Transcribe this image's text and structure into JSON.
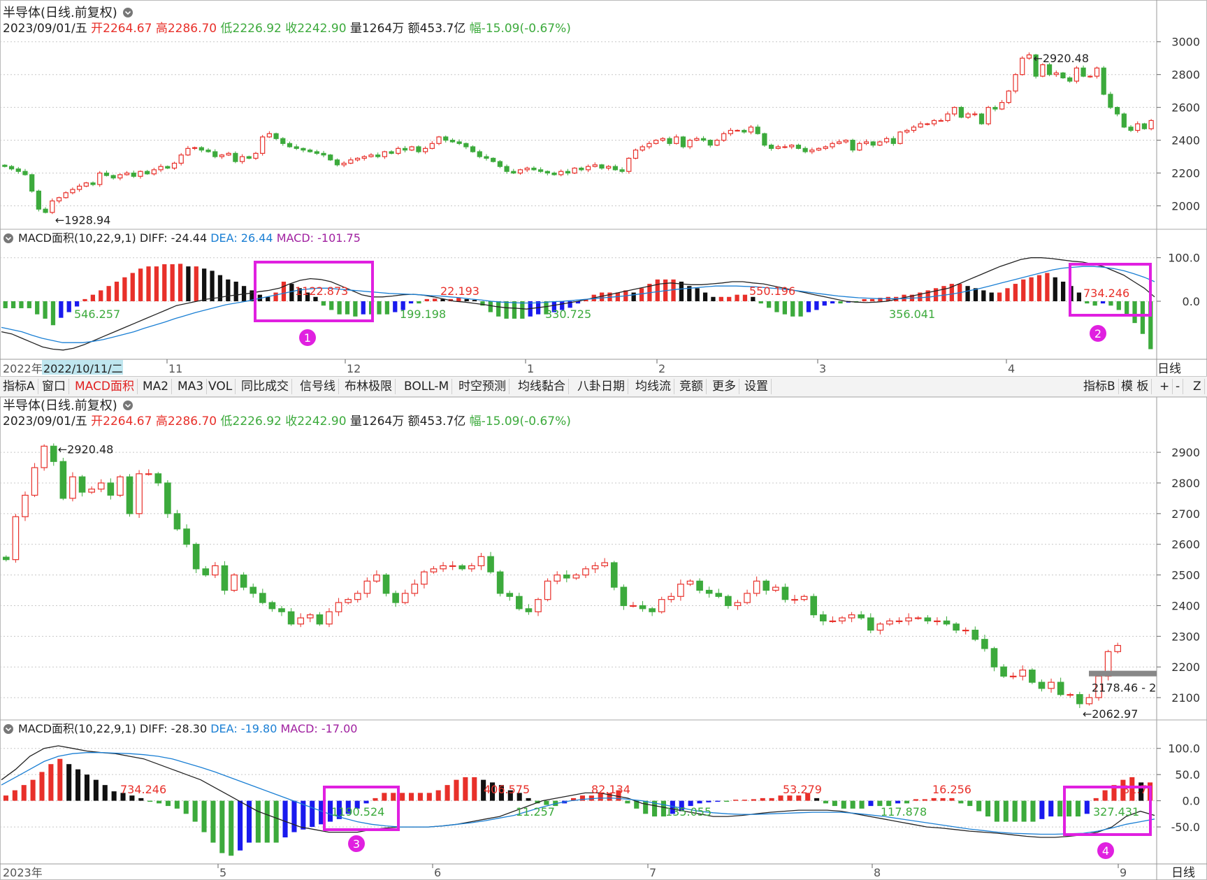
{
  "colors": {
    "up": "#e8302a",
    "down": "#3caa3c",
    "blue": "#1a1aee",
    "black": "#111111",
    "dea": "#1a7fd4",
    "diff": "#222222",
    "grid": "#c8c8c8",
    "box": "#e020e0",
    "macd_label": "#a020a0"
  },
  "top_panel": {
    "title": "半导体(日线.前复权)",
    "info": {
      "date": "2023/09/01/五",
      "open": "开2264.67",
      "high": "高2286.70",
      "low": "低2226.92",
      "close": "收2242.90",
      "vol": "量1264万",
      "amt": "额453.7亿",
      "chg": "幅-15.09(-0.67%)"
    }
  },
  "top_macd": {
    "header": "MACD面积(10,22,9,1)",
    "diff": "DIFF: -24.44",
    "dea": "DEA: 26.44",
    "macd": "MACD: -101.75"
  },
  "time_axis_top": {
    "labels": [
      "2022年",
      "2022/10/11/二",
      "11",
      "12",
      "1",
      "2",
      "3",
      "4"
    ],
    "right": "日线"
  },
  "toolbar": {
    "left": [
      "指标A",
      "窗口",
      "MACD面积",
      "MA2",
      "MA3",
      "VOL",
      "同比成交",
      "信号线",
      "布林极限",
      "BOLL-M",
      "时空预测",
      "均线黏合",
      "八卦日期",
      "均线流",
      "竞额",
      "更多",
      "设置"
    ],
    "right": [
      "指标B",
      "模 板",
      "+",
      "-",
      "Z"
    ]
  },
  "bottom_panel": {
    "title": "半导体(日线.前复权)",
    "info": {
      "date": "2023/09/01/五",
      "open": "开2264.67",
      "high": "高2286.70",
      "low": "低2226.92",
      "close": "收2242.90",
      "vol": "量1264万",
      "amt": "额453.7亿",
      "chg": "幅-15.09(-0.67%)"
    },
    "price_tag": "2178.46 - 2"
  },
  "bottom_macd": {
    "header": "MACD面积(10,22,9,1)",
    "diff": "DIFF: -28.30",
    "dea": "DEA: -19.80",
    "macd": "MACD: -17.00"
  },
  "time_axis_bottom": {
    "labels": [
      "2023年",
      "5",
      "6",
      "7",
      "8",
      "9"
    ],
    "right": "日线"
  },
  "chart_data": [
    {
      "type": "candlestick",
      "name": "top_price",
      "ylim": [
        1900,
        3050
      ],
      "yticks": [
        2000,
        2200,
        2400,
        2600,
        2800,
        3000
      ],
      "closes": [
        2240,
        2225,
        2210,
        2190,
        2090,
        1980,
        1960,
        2030,
        2050,
        2080,
        2100,
        2120,
        2140,
        2130,
        2200,
        2185,
        2170,
        2190,
        2200,
        2180,
        2210,
        2195,
        2220,
        2240,
        2230,
        2260,
        2310,
        2350,
        2355,
        2340,
        2330,
        2300,
        2310,
        2320,
        2270,
        2300,
        2290,
        2320,
        2420,
        2440,
        2410,
        2380,
        2360,
        2350,
        2340,
        2330,
        2320,
        2310,
        2280,
        2250,
        2260,
        2280,
        2290,
        2300,
        2310,
        2300,
        2330,
        2320,
        2350,
        2340,
        2360,
        2330,
        2350,
        2380,
        2420,
        2400,
        2390,
        2380,
        2360,
        2330,
        2300,
        2290,
        2270,
        2240,
        2210,
        2200,
        2220,
        2230,
        2220,
        2210,
        2200,
        2190,
        2210,
        2200,
        2230,
        2220,
        2240,
        2250,
        2230,
        2240,
        2220,
        2210,
        2290,
        2340,
        2360,
        2380,
        2400,
        2410,
        2380,
        2420,
        2360,
        2400,
        2410,
        2400,
        2370,
        2400,
        2440,
        2460,
        2460,
        2450,
        2480,
        2440,
        2370,
        2350,
        2360,
        2360,
        2370,
        2350,
        2330,
        2340,
        2350,
        2360,
        2380,
        2390,
        2400,
        2340,
        2380,
        2390,
        2370,
        2390,
        2410,
        2380,
        2450,
        2460,
        2480,
        2500,
        2500,
        2520,
        2520,
        2560,
        2600,
        2540,
        2560,
        2560,
        2500,
        2600,
        2590,
        2630,
        2700,
        2800,
        2900,
        2920,
        2790,
        2860,
        2800,
        2810,
        2780,
        2760,
        2840,
        2790,
        2790,
        2840,
        2680,
        2600,
        2560,
        2480,
        2460,
        2500,
        2470,
        2520
      ],
      "price_label_high": "2920.48",
      "price_label_low": "1928.94"
    },
    {
      "type": "candlestick",
      "name": "bottom_price",
      "ylim": [
        2050,
        2980
      ],
      "yticks": [
        2100,
        2200,
        2300,
        2400,
        2500,
        2600,
        2700,
        2800,
        2900
      ],
      "closes": [
        2550,
        2690,
        2760,
        2850,
        2920,
        2870,
        2750,
        2820,
        2770,
        2780,
        2800,
        2760,
        2820,
        2700,
        2830,
        2830,
        2800,
        2700,
        2650,
        2600,
        2520,
        2500,
        2530,
        2450,
        2500,
        2460,
        2440,
        2410,
        2390,
        2380,
        2340,
        2360,
        2370,
        2340,
        2380,
        2410,
        2420,
        2440,
        2480,
        2500,
        2440,
        2410,
        2440,
        2470,
        2510,
        2520,
        2530,
        2530,
        2520,
        2530,
        2560,
        2510,
        2440,
        2430,
        2390,
        2380,
        2420,
        2480,
        2500,
        2490,
        2500,
        2520,
        2530,
        2540,
        2460,
        2400,
        2400,
        2390,
        2380,
        2420,
        2430,
        2470,
        2480,
        2450,
        2440,
        2430,
        2400,
        2410,
        2440,
        2480,
        2450,
        2460,
        2420,
        2420,
        2430,
        2370,
        2350,
        2350,
        2360,
        2370,
        2360,
        2320,
        2340,
        2350,
        2350,
        2360,
        2360,
        2350,
        2350,
        2340,
        2320,
        2320,
        2290,
        2260,
        2200,
        2170,
        2170,
        2190,
        2150,
        2130,
        2150,
        2110,
        2110,
        2080,
        2100,
        2170,
        2250,
        2270
      ],
      "price_label_high": "2920.48",
      "price_label_low": "2062.97"
    },
    {
      "type": "bar",
      "name": "top_macd",
      "ylim": [
        -130,
        130
      ],
      "yticks": [
        100.0,
        0.0
      ],
      "hist": [
        -16,
        -16,
        -16,
        -16,
        -30,
        -40,
        -55,
        -38,
        -25,
        -12,
        5,
        15,
        25,
        35,
        45,
        55,
        65,
        75,
        80,
        80,
        85,
        85,
        86,
        80,
        80,
        75,
        70,
        60,
        50,
        45,
        35,
        25,
        15,
        10,
        20,
        45,
        40,
        30,
        20,
        10,
        -10,
        -20,
        -30,
        -30,
        -35,
        -30,
        -30,
        -30,
        -30,
        -25,
        -20,
        -5,
        -5,
        5,
        6,
        5,
        5,
        8,
        5,
        3,
        -10,
        -25,
        -35,
        -40,
        -40,
        -40,
        -35,
        -30,
        -30,
        -25,
        -20,
        -15,
        -5,
        5,
        15,
        20,
        20,
        20,
        25,
        20,
        30,
        40,
        50,
        50,
        50,
        45,
        35,
        30,
        20,
        10,
        10,
        10,
        15,
        15,
        10,
        -5,
        -15,
        -25,
        -30,
        -35,
        -35,
        -25,
        -20,
        -10,
        -5,
        -5,
        -3,
        -3,
        5,
        5,
        8,
        10,
        10,
        15,
        15,
        20,
        25,
        30,
        35,
        40,
        40,
        35,
        30,
        25,
        20,
        20,
        30,
        40,
        50,
        55,
        60,
        65,
        55,
        45,
        35,
        20,
        -5,
        -10,
        -5,
        -10,
        -20,
        -30,
        -50,
        -75,
        -110
      ],
      "diff": [
        -70,
        -75,
        -85,
        -95,
        -105,
        -110,
        -112,
        -108,
        -100,
        -90,
        -80,
        -70,
        -60,
        -50,
        -40,
        -30,
        -20,
        -10,
        -5,
        0,
        5,
        8,
        12,
        15,
        18,
        22,
        25,
        30,
        40,
        48,
        52,
        50,
        45,
        35,
        25,
        15,
        10,
        10,
        12,
        15,
        16,
        14,
        10,
        5,
        0,
        -2,
        -5,
        -8,
        -12,
        -15,
        -16,
        -18,
        -15,
        -12,
        -8,
        -4,
        0,
        5,
        10,
        15,
        20,
        25,
        30,
        35,
        40,
        42,
        40,
        38,
        38,
        40,
        42,
        45,
        45,
        42,
        40,
        35,
        30,
        25,
        20,
        15,
        10,
        5,
        0,
        -2,
        -3,
        -2,
        0,
        5,
        10,
        15,
        20,
        25,
        30,
        40,
        50,
        60,
        70,
        80,
        88,
        96,
        100,
        100,
        98,
        95,
        92,
        90,
        85,
        80,
        70,
        60,
        45,
        30,
        10
      ],
      "dea": [
        -60,
        -65,
        -70,
        -78,
        -85,
        -90,
        -95,
        -95,
        -95,
        -92,
        -88,
        -82,
        -76,
        -70,
        -62,
        -55,
        -48,
        -40,
        -33,
        -26,
        -20,
        -14,
        -8,
        -4,
        0,
        5,
        10,
        15,
        20,
        25,
        28,
        30,
        30,
        28,
        26,
        24,
        22,
        20,
        18,
        17,
        16,
        15,
        13,
        12,
        10,
        8,
        5,
        3,
        0,
        -2,
        -3,
        -4,
        -4,
        -3,
        -1,
        0,
        2,
        4,
        6,
        8,
        10,
        12,
        15,
        18,
        21,
        24,
        27,
        29,
        31,
        33,
        35,
        35,
        35,
        34,
        33,
        31,
        29,
        27,
        24,
        21,
        18,
        15,
        12,
        10,
        8,
        7,
        6,
        6,
        6,
        7,
        8,
        10,
        13,
        16,
        20,
        25,
        30,
        36,
        42,
        48,
        54,
        60,
        66,
        72,
        76,
        78,
        80,
        80,
        78,
        75,
        70,
        63,
        55,
        45
      ]
    },
    {
      "type": "bar",
      "name": "bottom_macd",
      "ylim": [
        -110,
        125
      ],
      "yticks": [
        100.0,
        50.0,
        0.0,
        -50.0
      ],
      "hist": [
        10,
        20,
        30,
        40,
        55,
        70,
        80,
        70,
        60,
        50,
        40,
        30,
        18,
        15,
        10,
        5,
        -2,
        -5,
        -10,
        -15,
        -25,
        -40,
        -60,
        -80,
        -100,
        -105,
        -95,
        -80,
        -80,
        -80,
        -80,
        -70,
        -60,
        -55,
        -50,
        -45,
        -40,
        -35,
        -25,
        -15,
        -5,
        5,
        15,
        15,
        15,
        15,
        15,
        15,
        20,
        30,
        40,
        45,
        45,
        40,
        35,
        30,
        20,
        15,
        5,
        -5,
        -8,
        -10,
        -5,
        5,
        10,
        10,
        15,
        15,
        20,
        -5,
        -15,
        -25,
        -30,
        -30,
        -25,
        -20,
        -10,
        -5,
        -3,
        -2,
        -2,
        2,
        2,
        3,
        5,
        5,
        10,
        10,
        10,
        15,
        5,
        -5,
        -10,
        -15,
        -15,
        -15,
        -10,
        -10,
        -10,
        -5,
        -5,
        3,
        3,
        5,
        5,
        5,
        -5,
        -10,
        -20,
        -30,
        -40,
        -40,
        -40,
        -40,
        -40,
        -35,
        -30,
        -30,
        -30,
        -30,
        -25,
        5,
        20,
        30,
        40,
        45,
        35,
        35
      ],
      "diff": [
        40,
        60,
        85,
        100,
        105,
        100,
        95,
        92,
        90,
        85,
        80,
        70,
        60,
        50,
        40,
        25,
        10,
        -5,
        -20,
        -30,
        -40,
        -50,
        -55,
        -60,
        -60,
        -60,
        -55,
        -52,
        -50,
        -50,
        -50,
        -48,
        -45,
        -40,
        -35,
        -30,
        -20,
        -10,
        0,
        5,
        10,
        15,
        15,
        10,
        5,
        -5,
        -10,
        -15,
        -20,
        -25,
        -30,
        -30,
        -28,
        -25,
        -22,
        -20,
        -18,
        -18,
        -18,
        -20,
        -25,
        -30,
        -35,
        -40,
        -45,
        -50,
        -52,
        -55,
        -58,
        -60,
        -62,
        -65,
        -68,
        -70,
        -70,
        -68,
        -65,
        -60,
        -50,
        -30,
        -20,
        -28
      ],
      "dea": [
        30,
        45,
        60,
        75,
        85,
        90,
        92,
        92,
        91,
        90,
        88,
        85,
        80,
        72,
        64,
        55,
        45,
        35,
        25,
        15,
        5,
        -5,
        -15,
        -25,
        -33,
        -40,
        -45,
        -48,
        -50,
        -50,
        -50,
        -48,
        -45,
        -42,
        -38,
        -33,
        -28,
        -20,
        -12,
        -5,
        0,
        3,
        5,
        5,
        3,
        0,
        -5,
        -10,
        -15,
        -20,
        -23,
        -25,
        -26,
        -26,
        -25,
        -24,
        -23,
        -22,
        -22,
        -22,
        -24,
        -27,
        -30,
        -34,
        -38,
        -42,
        -46,
        -50,
        -54,
        -57,
        -60,
        -62,
        -63,
        -64,
        -64,
        -63,
        -62,
        -58,
        -52,
        -45,
        -40,
        -35
      ]
    }
  ],
  "annotations": {
    "top": [
      {
        "text": "546.257",
        "color": "down"
      },
      {
        "text": "1122.873",
        "color": "up"
      },
      {
        "text": "199.198",
        "color": "down"
      },
      {
        "text": "22.193",
        "color": "up"
      },
      {
        "text": "330.725",
        "color": "down"
      },
      {
        "text": "550.196",
        "color": "up"
      },
      {
        "text": "356.041",
        "color": "down"
      },
      {
        "text": "734.246",
        "color": "up"
      }
    ],
    "bottom": [
      {
        "text": "734.246",
        "color": "up"
      },
      {
        "text": "1190.524",
        "color": "down"
      },
      {
        "text": "406.575",
        "color": "up"
      },
      {
        "text": "11.257",
        "color": "down"
      },
      {
        "text": "82.134",
        "color": "up"
      },
      {
        "text": "135.055",
        "color": "down"
      },
      {
        "text": "53.279",
        "color": "up"
      },
      {
        "text": "117.878",
        "color": "down"
      },
      {
        "text": "16.256",
        "color": "up"
      },
      {
        "text": "327.431",
        "color": "down"
      },
      {
        "text": "81.7",
        "color": "up"
      }
    ],
    "markers": [
      "1",
      "2",
      "3",
      "4"
    ]
  }
}
